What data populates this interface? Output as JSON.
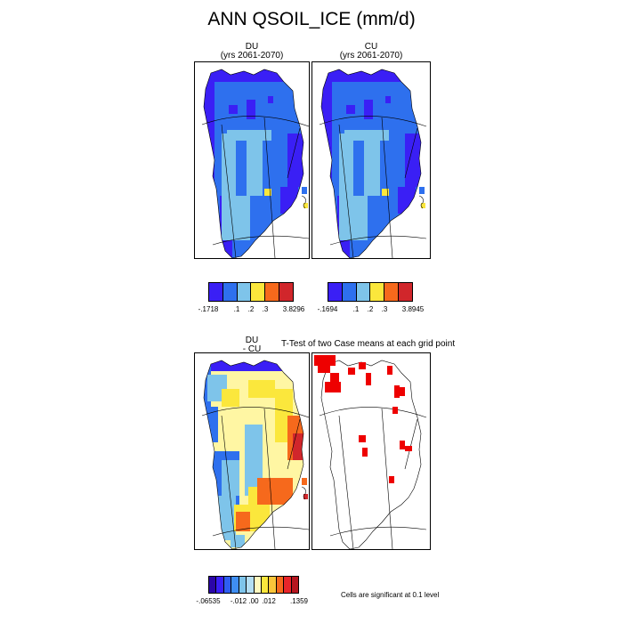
{
  "title": "ANN QSOIL_ICE (mm/d)",
  "colors": {
    "purple": "#3a1ff5",
    "blue": "#2e70ee",
    "lightblue": "#7ec4ea",
    "yellow": "#fbe73c",
    "orange": "#f6691c",
    "red": "#d1262b",
    "paleyellow": "#fff6a3",
    "white": "#ffffff",
    "sigred": "#ee0000"
  },
  "chart_data": [
    {
      "type": "heatmap",
      "panel": "DU",
      "title_line1": "DU",
      "title_line2": "(yrs 2061-2070)",
      "colorbar": {
        "colors": [
          "#3a1ff5",
          "#2e70ee",
          "#7ec4ea",
          "#fbe73c",
          "#f6691c",
          "#d1262b"
        ],
        "labels": [
          "-.1718",
          ".1",
          ".2",
          ".3",
          "3.8296"
        ],
        "label_edges": [
          0,
          2,
          3,
          4,
          6
        ]
      }
    },
    {
      "type": "heatmap",
      "panel": "CU",
      "title_line1": "CU",
      "title_line2": "(yrs 2061-2070)",
      "colorbar": {
        "colors": [
          "#3a1ff5",
          "#2e70ee",
          "#7ec4ea",
          "#fbe73c",
          "#f6691c",
          "#d1262b"
        ],
        "labels": [
          "-.1694",
          ".1",
          ".2",
          ".3",
          "3.8945"
        ],
        "label_edges": [
          0,
          2,
          3,
          4,
          6
        ]
      }
    },
    {
      "type": "heatmap",
      "panel": "DU - CU",
      "title_line1": "DU",
      "title_line2": "- CU",
      "colorbar": {
        "colors": [
          "#2b06a8",
          "#3a1ff5",
          "#2e5ef2",
          "#3f8ef2",
          "#7ec4ea",
          "#b4def3",
          "#fff8bf",
          "#fbe73c",
          "#f9c53a",
          "#f6691c",
          "#e8252a",
          "#b5161f"
        ],
        "labels": [
          "-.06535",
          "-.012",
          ".00",
          ".012",
          ".1359"
        ],
        "label_edges": [
          0,
          4,
          6,
          8,
          12
        ]
      }
    },
    {
      "type": "heatmap",
      "panel": "T-Test",
      "title": "T-Test of two Case means at each grid point",
      "note": "Cells are significant at 0.1 level"
    }
  ]
}
